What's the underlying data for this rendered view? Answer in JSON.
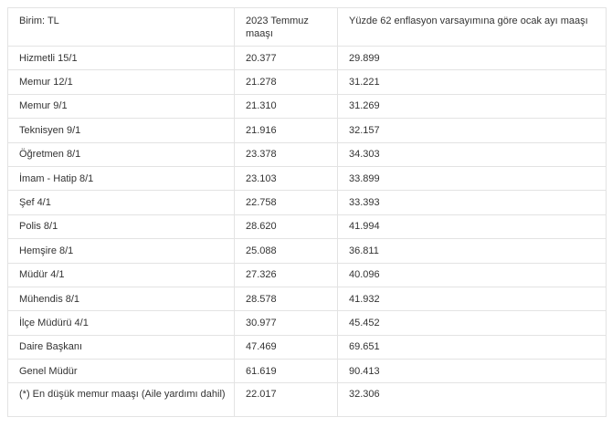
{
  "table": {
    "headers": [
      "Birim: TL",
      "2023 Temmuz maaşı",
      "Yüzde 62 enflasyon varsayımına göre ocak ayı maaşı"
    ],
    "rows": [
      [
        "Hizmetli 15/1",
        "20.377",
        "29.899"
      ],
      [
        "Memur 12/1",
        "21.278",
        "31.221"
      ],
      [
        "Memur 9/1",
        "21.310",
        "31.269"
      ],
      [
        "Teknisyen 9/1",
        "21.916",
        "32.157"
      ],
      [
        "Öğretmen 8/1",
        "23.378",
        "34.303"
      ],
      [
        "İmam - Hatip 8/1",
        "23.103",
        "33.899"
      ],
      [
        "Şef 4/1",
        "22.758",
        "33.393"
      ],
      [
        "Polis 8/1",
        "28.620",
        "41.994"
      ],
      [
        "Hemşire 8/1",
        "25.088",
        "36.811"
      ],
      [
        "Müdür 4/1",
        "27.326",
        "40.096"
      ],
      [
        "Mühendis 8/1",
        "28.578",
        "41.932"
      ],
      [
        "İlçe Müdürü 4/1",
        "30.977",
        "45.452"
      ],
      [
        "Daire Başkanı",
        "47.469",
        "69.651"
      ],
      [
        "Genel Müdür",
        "61.619",
        "90.413"
      ],
      [
        "(*) En düşük memur maaşı (Aile yardımı dahil)",
        "22.017",
        "32.306"
      ]
    ]
  }
}
